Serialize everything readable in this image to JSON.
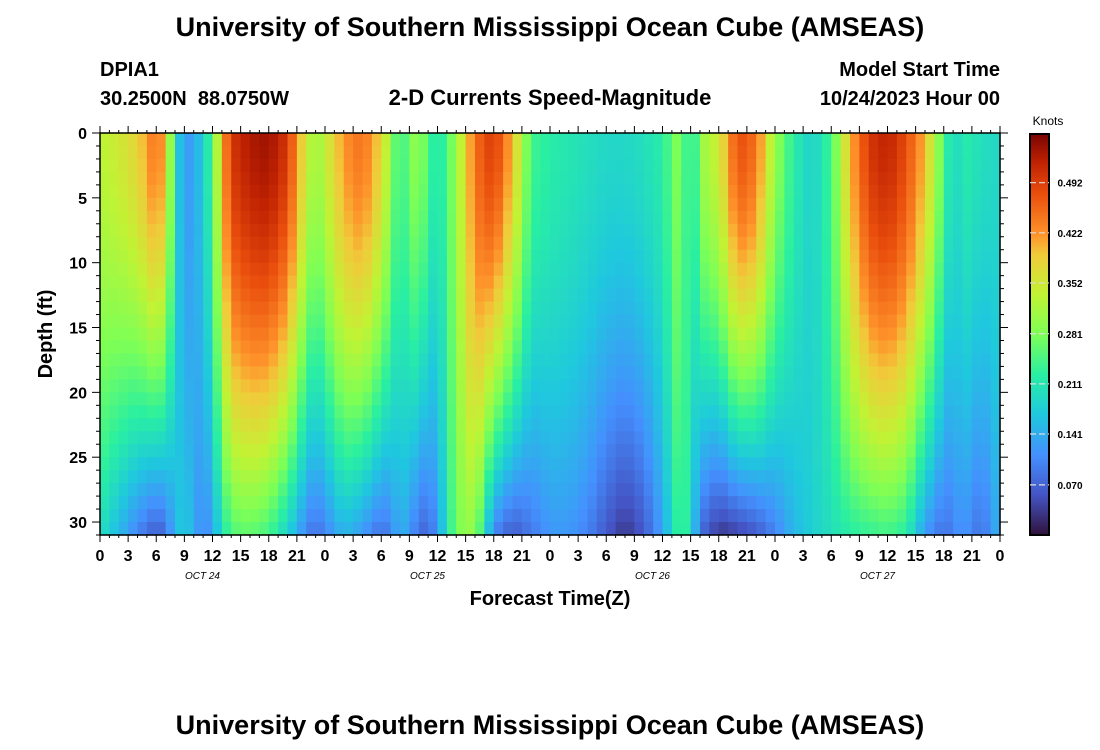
{
  "header": {
    "title": "University of Southern Mississippi Ocean Cube (AMSEAS)",
    "station_id": "DPIA1",
    "station_coords": "30.2500N  88.0750W",
    "chart_title": "2-D Currents Speed-Magnitude",
    "model_start_label": "Model Start Time",
    "model_start_value": "10/24/2023 Hour 00",
    "footer_title": "University of Southern Mississippi Ocean Cube (AMSEAS)"
  },
  "chart_data": {
    "type": "heatmap",
    "title": "2-D Currents Speed-Magnitude",
    "xlabel": "Forecast Time(Z)",
    "ylabel": "Depth (ft)",
    "x_ticks": [
      "0",
      "3",
      "6",
      "9",
      "12",
      "15",
      "18",
      "21",
      "0",
      "3",
      "6",
      "9",
      "12",
      "15",
      "18",
      "21",
      "0",
      "3",
      "6",
      "9",
      "12",
      "15",
      "18",
      "21",
      "0",
      "3",
      "6",
      "9",
      "12",
      "15",
      "18",
      "21",
      "0"
    ],
    "x_range_hours": [
      0,
      96
    ],
    "day_labels": [
      {
        "label": "OCT 24",
        "hour": 12
      },
      {
        "label": "OCT 25",
        "hour": 36
      },
      {
        "label": "OCT 26",
        "hour": 60
      },
      {
        "label": "OCT 27",
        "hour": 84
      }
    ],
    "y_ticks": [
      0,
      5,
      10,
      15,
      20,
      25,
      30
    ],
    "ylim": [
      0,
      31
    ],
    "y_inverted": true,
    "colorbar": {
      "label": "Knots",
      "ticks": [
        "0.492",
        "0.422",
        "0.352",
        "0.281",
        "0.211",
        "0.141",
        "0.070"
      ],
      "tick_values": [
        0.492,
        0.422,
        0.352,
        0.281,
        0.211,
        0.141,
        0.07
      ],
      "vmin": 0.0,
      "vmax": 0.56
    },
    "speed_pattern_hours": [
      0,
      2,
      4,
      6,
      7,
      8,
      9,
      10,
      11,
      12,
      13,
      14,
      16,
      18,
      20,
      22,
      23,
      24,
      26,
      28,
      30,
      31,
      32,
      33,
      34,
      35,
      36,
      38,
      40,
      42,
      44,
      46,
      48,
      50,
      52,
      54,
      56,
      58,
      60,
      62,
      63,
      64,
      66,
      68,
      70,
      72,
      74,
      76,
      78,
      80,
      82,
      84,
      86,
      88,
      90,
      91,
      92,
      94,
      96
    ],
    "speed_surface_knots": [
      0.33,
      0.35,
      0.38,
      0.45,
      0.4,
      0.2,
      0.12,
      0.13,
      0.18,
      0.25,
      0.4,
      0.5,
      0.53,
      0.54,
      0.5,
      0.35,
      0.3,
      0.34,
      0.42,
      0.45,
      0.38,
      0.3,
      0.22,
      0.28,
      0.3,
      0.25,
      0.2,
      0.3,
      0.45,
      0.5,
      0.4,
      0.24,
      0.22,
      0.21,
      0.2,
      0.19,
      0.19,
      0.2,
      0.22,
      0.3,
      0.18,
      0.3,
      0.35,
      0.48,
      0.45,
      0.3,
      0.22,
      0.18,
      0.24,
      0.4,
      0.5,
      0.52,
      0.48,
      0.4,
      0.25,
      0.18,
      0.22,
      0.2,
      0.19
    ],
    "speed_bottom_knots": [
      0.2,
      0.15,
      0.1,
      0.06,
      0.08,
      0.15,
      0.18,
      0.14,
      0.1,
      0.13,
      0.2,
      0.25,
      0.26,
      0.24,
      0.18,
      0.1,
      0.08,
      0.1,
      0.15,
      0.12,
      0.08,
      0.1,
      0.15,
      0.12,
      0.08,
      0.07,
      0.12,
      0.28,
      0.3,
      0.1,
      0.06,
      0.09,
      0.12,
      0.12,
      0.1,
      0.06,
      0.03,
      0.06,
      0.13,
      0.25,
      0.2,
      0.08,
      0.03,
      0.04,
      0.06,
      0.1,
      0.15,
      0.18,
      0.2,
      0.22,
      0.23,
      0.24,
      0.22,
      0.12,
      0.08,
      0.1,
      0.12,
      0.08,
      0.15
    ]
  }
}
